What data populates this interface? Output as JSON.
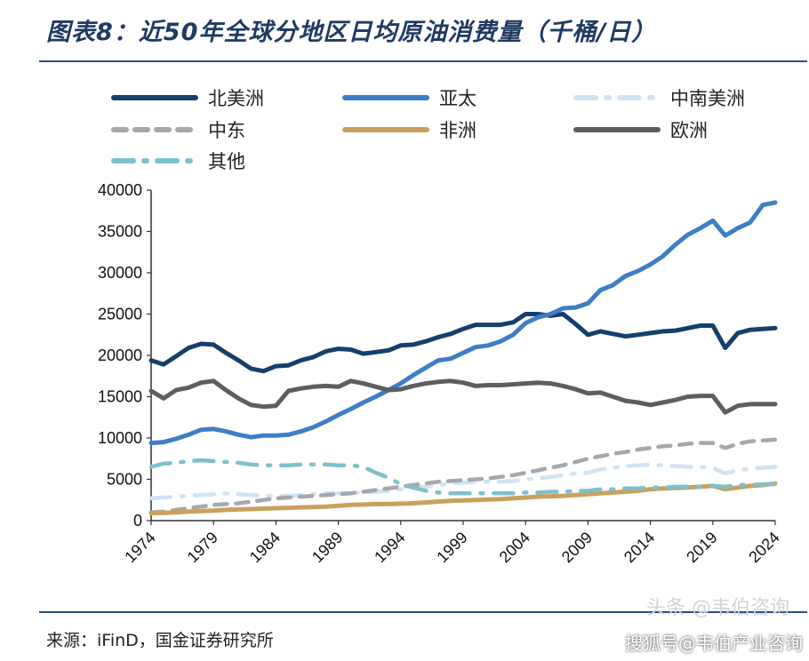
{
  "title": "图表8：近50年全球分地区日均原油消费量（千桶/日）",
  "source": "来源：iFinD，国金证券研究所",
  "watermark": {
    "line1": "头条 @韦伯咨询",
    "line2": "搜狐号@韦伯产业咨询"
  },
  "chart_data": {
    "type": "line",
    "title": "图表8：近50年全球分地区日均原油消费量（千桶/日）",
    "xlabel": "",
    "ylabel": "",
    "xlim": [
      1974,
      2024
    ],
    "ylim": [
      0,
      40000
    ],
    "x_ticks": [
      1974,
      1979,
      1984,
      1989,
      1994,
      1999,
      2004,
      2009,
      2014,
      2019,
      2024
    ],
    "y_ticks": [
      0,
      5000,
      10000,
      15000,
      20000,
      25000,
      30000,
      35000,
      40000
    ],
    "y_tick_labels": [
      "0",
      "5000",
      "10000",
      "15000",
      "20000",
      "25000",
      "30000",
      "35000",
      "40000"
    ],
    "grid": false,
    "legend_position": "top",
    "x": [
      1974,
      1975,
      1976,
      1977,
      1978,
      1979,
      1980,
      1981,
      1982,
      1983,
      1984,
      1985,
      1986,
      1987,
      1988,
      1989,
      1990,
      1991,
      1992,
      1993,
      1994,
      1995,
      1996,
      1997,
      1998,
      1999,
      2000,
      2001,
      2002,
      2003,
      2004,
      2005,
      2006,
      2007,
      2008,
      2009,
      2010,
      2011,
      2012,
      2013,
      2014,
      2015,
      2016,
      2017,
      2018,
      2019,
      2020,
      2021,
      2022,
      2023,
      2024
    ],
    "series": [
      {
        "name": "北美洲",
        "color": "#14406a",
        "style": "solid",
        "values": [
          19400,
          18900,
          19900,
          20900,
          21400,
          21300,
          20300,
          19400,
          18400,
          18100,
          18700,
          18800,
          19400,
          19800,
          20500,
          20800,
          20700,
          20200,
          20400,
          20600,
          21200,
          21300,
          21700,
          22200,
          22600,
          23200,
          23700,
          23700,
          23700,
          24000,
          25000,
          25000,
          24800,
          25000,
          23800,
          22500,
          22900,
          22600,
          22300,
          22500,
          22700,
          22900,
          23000,
          23300,
          23600,
          23600,
          20900,
          22700,
          23100,
          23200,
          23300
        ]
      },
      {
        "name": "亚太",
        "color": "#3d7ec6",
        "style": "solid",
        "values": [
          9400,
          9500,
          9900,
          10400,
          11000,
          11100,
          10800,
          10400,
          10100,
          10300,
          10300,
          10400,
          10800,
          11300,
          12000,
          12800,
          13500,
          14300,
          15000,
          15800,
          16600,
          17600,
          18500,
          19400,
          19600,
          20300,
          21000,
          21200,
          21700,
          22500,
          23900,
          24600,
          25000,
          25700,
          25800,
          26300,
          27900,
          28500,
          29600,
          30200,
          31000,
          32000,
          33400,
          34600,
          35400,
          36300,
          34500,
          35400,
          36100,
          38200,
          38500
        ]
      },
      {
        "name": "中南美洲",
        "color": "#cfe3f3",
        "style": "dashdot",
        "values": [
          2700,
          2800,
          2900,
          3000,
          3100,
          3200,
          3300,
          3200,
          3100,
          3000,
          3000,
          3000,
          3100,
          3200,
          3300,
          3300,
          3400,
          3400,
          3500,
          3600,
          3800,
          4000,
          4100,
          4300,
          4500,
          4600,
          4700,
          4700,
          4700,
          4800,
          5000,
          5100,
          5300,
          5500,
          5700,
          5800,
          6200,
          6400,
          6600,
          6700,
          6800,
          6700,
          6600,
          6500,
          6500,
          6400,
          5700,
          6100,
          6300,
          6400,
          6500
        ]
      },
      {
        "name": "中东",
        "color": "#a5a8ac",
        "style": "dashed",
        "values": [
          1000,
          1100,
          1300,
          1500,
          1700,
          1900,
          2000,
          2100,
          2300,
          2500,
          2700,
          2800,
          2900,
          3000,
          3100,
          3200,
          3300,
          3500,
          3700,
          3900,
          4100,
          4300,
          4500,
          4700,
          4800,
          4900,
          5000,
          5100,
          5300,
          5500,
          5800,
          6100,
          6400,
          6700,
          7100,
          7500,
          7800,
          8100,
          8300,
          8600,
          8800,
          9000,
          9100,
          9300,
          9400,
          9400,
          8800,
          9300,
          9600,
          9700,
          9800
        ]
      },
      {
        "name": "非洲",
        "color": "#c9a15d",
        "style": "solid",
        "values": [
          900,
          950,
          1000,
          1100,
          1150,
          1200,
          1300,
          1350,
          1400,
          1450,
          1500,
          1550,
          1600,
          1650,
          1700,
          1800,
          1900,
          1950,
          2000,
          2000,
          2050,
          2100,
          2200,
          2300,
          2400,
          2450,
          2500,
          2550,
          2600,
          2700,
          2800,
          2900,
          2950,
          3000,
          3100,
          3200,
          3300,
          3400,
          3500,
          3600,
          3800,
          3900,
          3950,
          4000,
          4100,
          4200,
          3800,
          4000,
          4200,
          4300,
          4500
        ]
      },
      {
        "name": "欧洲",
        "color": "#5c5e61",
        "style": "solid",
        "values": [
          15700,
          14800,
          15800,
          16100,
          16700,
          16900,
          15800,
          14800,
          14000,
          13800,
          13900,
          15700,
          16000,
          16200,
          16300,
          16200,
          16900,
          16600,
          16200,
          15800,
          15900,
          16300,
          16600,
          16800,
          16900,
          16700,
          16300,
          16400,
          16400,
          16500,
          16600,
          16700,
          16600,
          16300,
          15900,
          15400,
          15500,
          15000,
          14500,
          14300,
          14000,
          14300,
          14600,
          15000,
          15100,
          15100,
          13100,
          13900,
          14100,
          14100,
          14100
        ]
      },
      {
        "name": "其他",
        "color": "#7fc0cc",
        "style": "dashdot",
        "values": [
          6500,
          6900,
          7000,
          7200,
          7300,
          7200,
          7100,
          7000,
          6800,
          6700,
          6700,
          6700,
          6800,
          6800,
          6800,
          6700,
          6700,
          6500,
          5800,
          5200,
          4400,
          4000,
          3600,
          3400,
          3300,
          3300,
          3300,
          3300,
          3300,
          3300,
          3400,
          3400,
          3500,
          3500,
          3600,
          3600,
          3800,
          3800,
          3900,
          3900,
          4000,
          4000,
          4100,
          4100,
          4100,
          4200,
          4100,
          4300,
          4300,
          4400,
          4400
        ]
      }
    ]
  }
}
